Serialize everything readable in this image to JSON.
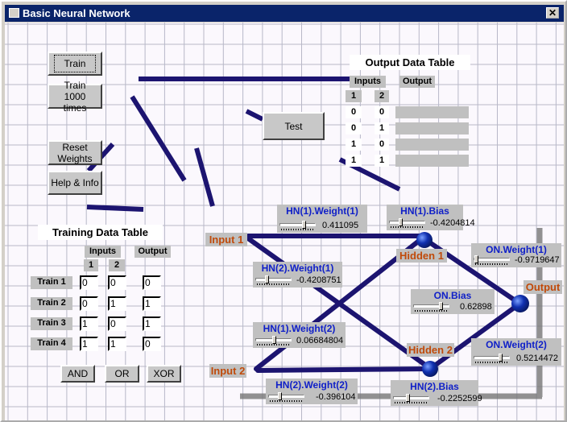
{
  "window": {
    "title": "Basic Neural Network",
    "close": "✕"
  },
  "buttons": {
    "train": "Train",
    "train1000": "Train 1000 times",
    "reset": "Reset Weights",
    "help": "Help & Info",
    "test": "Test",
    "and": "AND",
    "or": "OR",
    "xor": "XOR"
  },
  "training_table": {
    "title": "Training Data Table",
    "inputs_header": "Inputs",
    "output_header": "Output",
    "col1": "1",
    "col2": "2",
    "rows": [
      {
        "label": "Train 1",
        "in1": "0",
        "in2": "0",
        "out": "0"
      },
      {
        "label": "Train 2",
        "in1": "0",
        "in2": "1",
        "out": "1"
      },
      {
        "label": "Train 3",
        "in1": "1",
        "in2": "0",
        "out": "1"
      },
      {
        "label": "Train 4",
        "in1": "1",
        "in2": "1",
        "out": "0"
      }
    ]
  },
  "output_table": {
    "title": "Output Data Table",
    "inputs_header": "Inputs",
    "output_header": "Output",
    "col1": "1",
    "col2": "2",
    "rows": [
      {
        "in1": "0",
        "in2": "0",
        "out": ""
      },
      {
        "in1": "0",
        "in2": "1",
        "out": ""
      },
      {
        "in1": "1",
        "in2": "0",
        "out": ""
      },
      {
        "in1": "1",
        "in2": "1",
        "out": ""
      }
    ]
  },
  "network": {
    "input1": "Input 1",
    "input2": "Input 2",
    "hidden1": "Hidden 1",
    "hidden2": "Hidden 2",
    "output": "Output",
    "line_color": "#1c1470",
    "node_color": "#1030b0",
    "label_color": "#c04a0a",
    "weights": {
      "hn1_w1": {
        "name": "HN(1).Weight(1)",
        "value": "0.411095",
        "slider": 0.7
      },
      "hn1_bias": {
        "name": "HN(1).Bias",
        "value": "-0.4204814",
        "slider": 0.3
      },
      "hn2_w1": {
        "name": "HN(2).Weight(1)",
        "value": "-0.4208751",
        "slider": 0.3
      },
      "on_w1": {
        "name": "ON.Weight(1)",
        "value": "-0.9719647",
        "slider": 0.02
      },
      "on_bias": {
        "name": "ON.Bias",
        "value": "0.62898",
        "slider": 0.8
      },
      "hn1_w2": {
        "name": "HN(1).Weight(2)",
        "value": "0.06684804",
        "slider": 0.53
      },
      "on_w2": {
        "name": "ON.Weight(2)",
        "value": "0.5214472",
        "slider": 0.77
      },
      "hn2_w2": {
        "name": "HN(2).Weight(2)",
        "value": "-0.396104",
        "slider": 0.3
      },
      "hn2_bias": {
        "name": "HN(2).Bias",
        "value": "-0.2252599",
        "slider": 0.39
      }
    }
  }
}
